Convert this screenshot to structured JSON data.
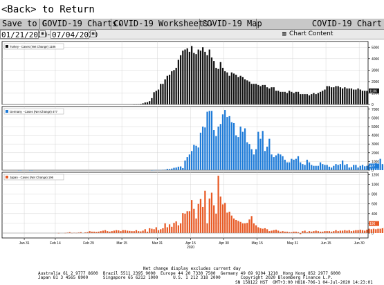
{
  "back_label": "<Back> to Return",
  "menu": {
    "save": "Save to G",
    "charts": "COVID-19 Charts",
    "worksheets": "COVID-19 Worksheets",
    "map": "COVID-19 Map",
    "title": "COVID-19 Chart",
    "dropdown_glyph": "▾"
  },
  "range": {
    "start": "01/21/2020",
    "end": "07/04/2020",
    "sep": "-",
    "chart_content": "Chart Content"
  },
  "colors": {
    "turkey": "#111111",
    "germany": "#1e7bd8",
    "japan": "#e85a25",
    "axis": "#000000",
    "grid": "#cccccc"
  },
  "footer": {
    "note": "Net change display excludes current day",
    "line1": "Australia 61 2 9777 8600  Brazil 5511 2395 9000  Europe 44 20 7330 7500  Germany 49 69 9204 1210  Hong Kong 852 2977 6000",
    "line2": "Japan 81 3 4565 8900      Singapore 65 6212 1000      U.S. 1 212 318 2000        Copyright 2020 Bloomberg Finance L.P.",
    "line3": "SN 158122 HST  GMT+3:00 H818-706-1 04-Jul-2020 14:23:01"
  },
  "chart_data": [
    {
      "type": "bar",
      "legend": "Turkey - Cases (Net Change) 1186",
      "last_value_label": "1186",
      "ylim": [
        0,
        5500
      ],
      "yticks": [
        0,
        1000,
        2000,
        3000,
        4000,
        5000
      ],
      "ytick_labels": [
        "0",
        "1000",
        "2000",
        "3000",
        "4000",
        "5000"
      ],
      "x_start": "2020-01-21",
      "x_end": "2020-07-03",
      "values": [
        0,
        0,
        0,
        0,
        0,
        0,
        0,
        0,
        0,
        0,
        0,
        0,
        0,
        0,
        0,
        0,
        0,
        0,
        0,
        0,
        0,
        0,
        0,
        0,
        0,
        0,
        0,
        0,
        0,
        0,
        0,
        0,
        0,
        0,
        0,
        0,
        0,
        0,
        0,
        0,
        0,
        0,
        0,
        0,
        0,
        0,
        0,
        0,
        0,
        0,
        0,
        0,
        0,
        0,
        0,
        0,
        0,
        0,
        0,
        5,
        13,
        29,
        49,
        97,
        169,
        193,
        290,
        554,
        1070,
        1192,
        1300,
        1800,
        1800,
        2200,
        2500,
        2600,
        2900,
        3000,
        3200,
        3900,
        4300,
        4700,
        4800,
        4900,
        4600,
        5100,
        4500,
        4400,
        4800,
        4700,
        5000,
        4600,
        4300,
        4800,
        4100,
        3800,
        3200,
        3100,
        3700,
        3200,
        2900,
        2800,
        2500,
        2800,
        2700,
        2600,
        2400,
        2500,
        2400,
        2200,
        2100,
        2000,
        1800,
        1800,
        1800,
        1700,
        1600,
        1700,
        1700,
        1500,
        1400,
        1500,
        1500,
        1200,
        1200,
        1100,
        1100,
        1100,
        1000,
        1200,
        1100,
        1000,
        1100,
        1100,
        900,
        900,
        900,
        900,
        800,
        900,
        1000,
        900,
        1000,
        1100,
        1200,
        1300,
        1600,
        1600,
        1500,
        1500,
        1600,
        1600,
        1500,
        1400,
        1500,
        1400,
        1400,
        1400,
        1300,
        1300,
        1400,
        1300,
        1200,
        1200,
        1186
      ]
    },
    {
      "type": "bar",
      "legend": "Germany - Cases (Net Change) 477",
      "last_value_label": "477",
      "ylim": [
        0,
        7300
      ],
      "yticks": [
        0,
        1000,
        2000,
        3000,
        4000,
        5000,
        6000,
        7000
      ],
      "ytick_labels": [
        "0",
        "1000",
        "2000",
        "3000",
        "4000",
        "5000",
        "6000",
        "7000"
      ],
      "x_start": "2020-01-21",
      "x_end": "2020-07-03",
      "values": [
        0,
        0,
        0,
        0,
        0,
        0,
        0,
        1,
        3,
        0,
        0,
        0,
        1,
        2,
        0,
        0,
        0,
        0,
        0,
        0,
        0,
        0,
        0,
        0,
        0,
        0,
        0,
        0,
        0,
        0,
        0,
        0,
        0,
        0,
        0,
        0,
        0,
        0,
        0,
        0,
        0,
        0,
        0,
        0,
        0,
        0,
        0,
        0,
        0,
        0,
        0,
        0,
        0,
        0,
        0,
        0,
        0,
        0,
        0,
        0,
        0,
        0,
        0,
        0,
        0,
        0,
        0,
        1,
        10,
        40,
        30,
        30,
        50,
        60,
        150,
        130,
        180,
        270,
        300,
        400,
        430,
        240,
        1100,
        1500,
        1800,
        2200,
        2900,
        2800,
        2600,
        4300,
        5000,
        4900,
        6700,
        6800,
        6800,
        4600,
        3900,
        5000,
        5300,
        6400,
        6900,
        6100,
        6200,
        5500,
        5400,
        4000,
        3800,
        5000,
        4400,
        4800,
        3200,
        3000,
        2400,
        1800,
        2400,
        4400,
        3600,
        4500,
        2200,
        2700,
        3600,
        1800,
        1500,
        1700,
        1900,
        1800,
        1600,
        1200,
        900,
        900,
        1300,
        1200,
        1300,
        1600,
        900,
        700,
        600,
        1200,
        900,
        600,
        500,
        500,
        500,
        900,
        700,
        600,
        600,
        400,
        300,
        500,
        700,
        600,
        700,
        1100,
        600,
        700,
        300,
        350,
        600,
        600,
        300,
        500,
        600,
        450,
        500,
        600,
        700,
        750,
        800,
        600,
        1300,
        700,
        550,
        500,
        400,
        350,
        300,
        450,
        400,
        450,
        500,
        600,
        477
      ]
    },
    {
      "type": "bar",
      "legend": "Japan - Cases (Net Change) 196",
      "last_value_label": "196",
      "ylim": [
        -100,
        1250
      ],
      "yticks": [
        0,
        200,
        400,
        600,
        800,
        1000,
        1200
      ],
      "ytick_labels": [
        "0",
        "200",
        "400",
        "600",
        "800",
        "1000",
        "1200"
      ],
      "x_start": "2020-01-21",
      "x_end": "2020-07-03",
      "values": [
        0,
        0,
        0,
        0,
        0,
        0,
        0,
        0,
        0,
        0,
        0,
        0,
        0,
        0,
        0,
        0,
        0,
        0,
        0,
        0,
        0,
        0,
        0,
        0,
        0,
        3,
        0,
        0,
        5,
        10,
        20,
        5,
        8,
        6,
        12,
        20,
        0,
        15,
        20,
        40,
        30,
        30,
        25,
        30,
        40,
        50,
        60,
        40,
        30,
        40,
        50,
        60,
        55,
        40,
        60,
        60,
        50,
        45,
        40,
        40,
        60,
        40,
        35,
        50,
        80,
        30,
        100,
        90,
        80,
        120,
        60,
        80,
        100,
        200,
        120,
        180,
        130,
        210,
        240,
        160,
        200,
        410,
        400,
        450,
        450,
        680,
        500,
        300,
        600,
        700,
        540,
        870,
        200,
        710,
        830,
        570,
        400,
        1180,
        750,
        590,
        620,
        420,
        440,
        360,
        300,
        270,
        250,
        230,
        200,
        200,
        210,
        280,
        350,
        200,
        160,
        120,
        100,
        90,
        100,
        80,
        40,
        50,
        60,
        70,
        50,
        30,
        40,
        30,
        30,
        20,
        20,
        30,
        30,
        20,
        -20,
        40,
        50,
        20,
        40,
        30,
        40,
        50,
        40,
        30,
        30,
        40,
        40,
        40,
        30,
        40,
        60,
        40,
        50,
        50,
        60,
        50,
        60,
        40,
        50,
        60,
        60,
        70,
        60,
        50,
        70,
        90,
        80,
        90,
        80,
        90,
        90,
        100,
        130,
        110,
        160,
        100,
        196
      ]
    }
  ],
  "x_axis": {
    "ticks": [
      "2020-01-31",
      "2020-02-14",
      "2020-02-29",
      "2020-03-15",
      "2020-03-31",
      "2020-04-15",
      "2020-04-30",
      "2020-05-15",
      "2020-05-31",
      "2020-06-15",
      "2020-06-30"
    ],
    "tick_labels": [
      "Jan 31",
      "Feb 14",
      "Feb 29",
      "Mar 15",
      "Mar 31",
      "Apr 15",
      "Apr 30",
      "May 15",
      "May 31",
      "Jun 15",
      "Jun 30"
    ],
    "year_label": "2020"
  }
}
